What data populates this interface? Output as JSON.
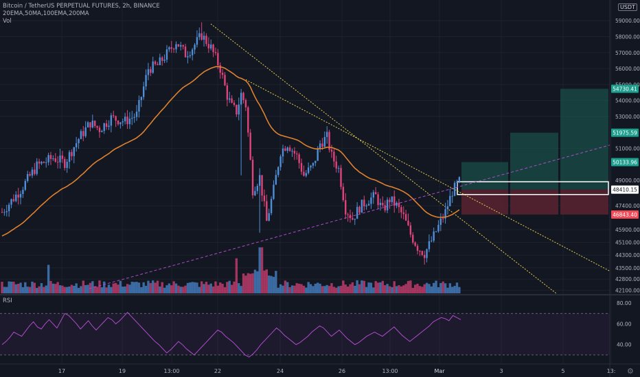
{
  "header": {
    "title": "Bitcoin / TetherUS PERPETUAL FUTURES, 2h, BINANCE",
    "indicators": "20EMA,50MA,100EMA,200MA",
    "volume": "Vol"
  },
  "rsi_label": "RSI",
  "currency": "USDT",
  "colors": {
    "background": "#131722",
    "up": "#4f8fd8",
    "down": "#e0447a",
    "ema": "#e0822e",
    "trendline": "#e8d44d",
    "dashed_line": "#b04ccc",
    "rsi_line": "#b04ccc",
    "target_zone": "#1a4d47",
    "stop_zone": "#5a2230",
    "tag_green": "#1e9e8c",
    "tag_red": "#f24b58"
  },
  "chart_data": {
    "type": "candlestick",
    "price_axis": {
      "ticks": [
        "59000.00",
        "58000.00",
        "57000.00",
        "56000.00",
        "55000.00",
        "54000.00",
        "53000.00",
        "51000.00",
        "49000.00",
        "47400.00",
        "45900.00",
        "45100.00",
        "44300.00",
        "43500.00",
        "42800.00",
        "42100.00"
      ],
      "ylim": [
        41900,
        60300
      ]
    },
    "price_tags": [
      {
        "label": "54730.41",
        "value": 54730.41,
        "color": "green"
      },
      {
        "label": "51975.59",
        "value": 51975.59,
        "color": "green"
      },
      {
        "label": "50133.96",
        "value": 50133.96,
        "color": "green"
      },
      {
        "label": "48410.15",
        "value": 48410.15,
        "color": "white"
      },
      {
        "label": "46843.40",
        "value": 46843.4,
        "color": "red"
      }
    ],
    "rsi_axis": {
      "ticks": [
        "80.00",
        "60.00",
        "40.00"
      ],
      "ylim": [
        22,
        86
      ],
      "band": [
        30,
        70
      ]
    },
    "x_axis": {
      "ticks": [
        "17",
        "19",
        "13:00",
        "22",
        "24",
        "26",
        "13:00",
        "Mar",
        "3",
        "5",
        "13:"
      ]
    },
    "close_path": [
      [
        0,
        47000
      ],
      [
        8,
        48400
      ],
      [
        15,
        49900
      ],
      [
        22,
        50400
      ],
      [
        27,
        50100
      ],
      [
        33,
        51600
      ],
      [
        38,
        52600
      ],
      [
        42,
        52200
      ],
      [
        47,
        52900
      ],
      [
        53,
        52700
      ],
      [
        58,
        53100
      ],
      [
        63,
        56000
      ],
      [
        67,
        56200
      ],
      [
        72,
        57100
      ],
      [
        75,
        57700
      ],
      [
        79,
        56900
      ],
      [
        82,
        57300
      ],
      [
        86,
        58100
      ],
      [
        90,
        57300
      ],
      [
        94,
        56000
      ],
      [
        97,
        54300
      ],
      [
        99,
        53600
      ],
      [
        101,
        53300
      ],
      [
        103,
        54400
      ],
      [
        105,
        53700
      ],
      [
        108,
        48400
      ],
      [
        111,
        49200
      ],
      [
        114,
        46400
      ],
      [
        117,
        48400
      ],
      [
        120,
        50800
      ],
      [
        123,
        51300
      ],
      [
        127,
        50500
      ],
      [
        130,
        49300
      ],
      [
        134,
        49900
      ],
      [
        137,
        51300
      ],
      [
        140,
        51700
      ],
      [
        142,
        50500
      ],
      [
        145,
        49700
      ],
      [
        148,
        47200
      ],
      [
        151,
        46600
      ],
      [
        154,
        47300
      ],
      [
        158,
        47800
      ],
      [
        161,
        48000
      ],
      [
        164,
        47100
      ],
      [
        167,
        47800
      ],
      [
        170,
        47400
      ],
      [
        173,
        46700
      ],
      [
        176,
        45600
      ],
      [
        179,
        44800
      ],
      [
        182,
        44400
      ],
      [
        185,
        45200
      ],
      [
        188,
        46100
      ],
      [
        191,
        47000
      ],
      [
        194,
        48300
      ],
      [
        197,
        48900
      ]
    ],
    "rsi_values": [
      40,
      43,
      47,
      52,
      50,
      48,
      53,
      58,
      62,
      57,
      55,
      60,
      64,
      60,
      56,
      63,
      70,
      68,
      64,
      60,
      55,
      59,
      63,
      58,
      54,
      58,
      62,
      66,
      64,
      60,
      63,
      67,
      71,
      67,
      63,
      59,
      55,
      51,
      47,
      43,
      40,
      36,
      32,
      35,
      39,
      43,
      40,
      36,
      33,
      30,
      34,
      38,
      42,
      46,
      50,
      54,
      52,
      48,
      45,
      42,
      38,
      34,
      30,
      28,
      31,
      35,
      40,
      44,
      48,
      52,
      56,
      53,
      49,
      46,
      43,
      40,
      42,
      45,
      48,
      52,
      55,
      58,
      56,
      52,
      48,
      51,
      54,
      50,
      46,
      43,
      40,
      42,
      45,
      48,
      50,
      52,
      50,
      48,
      51,
      54,
      57,
      53,
      49,
      46,
      43,
      46,
      49,
      52,
      55,
      58,
      62,
      64,
      66,
      65,
      63,
      68,
      66,
      64
    ],
    "position_boxes": [
      {
        "entry": 48410.15,
        "stop": 46843.4,
        "target": 50133.96
      },
      {
        "entry": 48410.15,
        "stop": 46843.4,
        "target": 51975.59
      },
      {
        "entry": 48410.15,
        "stop": 46843.4,
        "target": 54730.41
      }
    ]
  }
}
